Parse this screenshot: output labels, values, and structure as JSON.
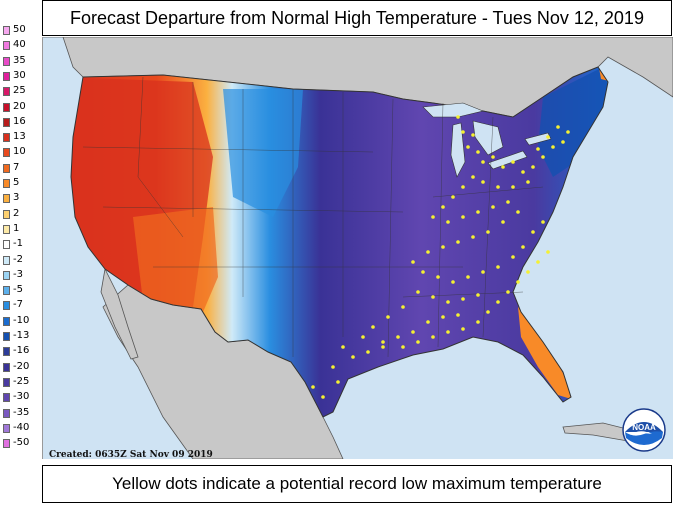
{
  "title": "Forecast Departure from Normal High Temperature - Tues Nov 12, 2019",
  "caption": "Yellow dots indicate a potential record low maximum temperature",
  "created": "Created: 0635Z Sat Nov 09 2019",
  "logo_text": "NOAA",
  "legend": [
    {
      "label": "50",
      "color": "#f7a8f0"
    },
    {
      "label": "40",
      "color": "#f07ae0"
    },
    {
      "label": "35",
      "color": "#e84ac8"
    },
    {
      "label": "30",
      "color": "#e0209c"
    },
    {
      "label": "25",
      "color": "#d81868"
    },
    {
      "label": "20",
      "color": "#c8102a"
    },
    {
      "label": "16",
      "color": "#b81c1c"
    },
    {
      "label": "13",
      "color": "#d8301e"
    },
    {
      "label": "10",
      "color": "#e84a1e"
    },
    {
      "label": "7",
      "color": "#f06a20"
    },
    {
      "label": "5",
      "color": "#f88a28"
    },
    {
      "label": "3",
      "color": "#fbb040"
    },
    {
      "label": "2",
      "color": "#fdd070"
    },
    {
      "label": "1",
      "color": "#fdeaa8"
    },
    {
      "label": "-1",
      "color": "#ffffff"
    },
    {
      "label": "-2",
      "color": "#cfeaf8"
    },
    {
      "label": "-3",
      "color": "#9cd4f4"
    },
    {
      "label": "-5",
      "color": "#5cb0ec"
    },
    {
      "label": "-7",
      "color": "#2a8ee0"
    },
    {
      "label": "-10",
      "color": "#1a6cd0"
    },
    {
      "label": "-13",
      "color": "#1450b0"
    },
    {
      "label": "-16",
      "color": "#2c3c98"
    },
    {
      "label": "-20",
      "color": "#3a3296"
    },
    {
      "label": "-25",
      "color": "#4a3aa0"
    },
    {
      "label": "-30",
      "color": "#6046b0"
    },
    {
      "label": "-35",
      "color": "#7a58c0"
    },
    {
      "label": "-40",
      "color": "#a078d8"
    },
    {
      "label": "-50",
      "color": "#e070e0"
    }
  ],
  "colors": {
    "ocean": "#cfe3f3",
    "land_outside": "#c8c8c8",
    "record_dot": "#f5f032"
  }
}
